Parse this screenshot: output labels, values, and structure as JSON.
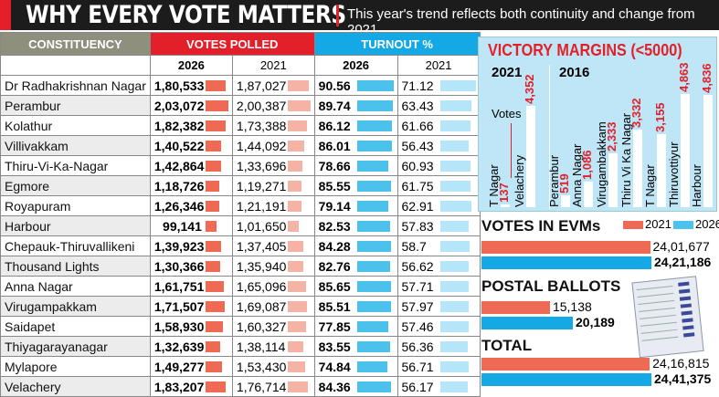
{
  "header": {
    "title": "WHY EVERY VOTE MATTERS",
    "subtitle": "This year's trend reflects both continuity and change from 2021"
  },
  "colors": {
    "red": "#e3202a",
    "bar2026": "#ef6a55",
    "bar2021": "#f5b3a6",
    "blue2026": "#4cc1ec",
    "blue2021": "#b5e5f8",
    "header_gray": "#8f8f7d",
    "turnout_blue": "#14a9e4"
  },
  "table": {
    "headers": {
      "constituency": "CONSTITUENCY",
      "votes": "VOTES POLLED",
      "turnout": "TURNOUT %"
    },
    "years": [
      "2026",
      "2021",
      "2026",
      "2021"
    ],
    "rows": [
      [
        "Dr Radhakrishnan Nagar",
        "1,80,533",
        "1,87,027",
        "90.56",
        "71.12"
      ],
      [
        "Perambur",
        "2,03,072",
        "2,00,387",
        "89.74",
        "63.43"
      ],
      [
        "Kolathur",
        "1,82,382",
        "1,73,388",
        "86.12",
        "61.66"
      ],
      [
        "Villivakkam",
        "1,40,522",
        "1,44,092",
        "86.01",
        "56.43"
      ],
      [
        "Thiru-Vi-Ka-Nagar",
        "1,42,864",
        "1,33,696",
        "78.66",
        "60.93"
      ],
      [
        "Egmore",
        "1,18,726",
        "1,19,271",
        "85.55",
        "61.75"
      ],
      [
        "Royapuram",
        "1,26,346",
        "1,21,191",
        "79.14",
        "62.91"
      ],
      [
        "Harbour",
        "99,141",
        "1,01,650",
        "82.53",
        "57.83"
      ],
      [
        "Chepauk-Thiruvallikeni",
        "1,39,923",
        "1,37,405",
        "84.28",
        "58.7"
      ],
      [
        "Thousand Lights",
        "1,30,366",
        "1,35,940",
        "82.76",
        "56.62"
      ],
      [
        "Anna Nagar",
        "1,61,751",
        "1,65,096",
        "85.65",
        "57.71"
      ],
      [
        "Virugampakkam",
        "1,71,507",
        "1,69,087",
        "85.51",
        "57.97"
      ],
      [
        "Saidapet",
        "1,58,930",
        "1,60,327",
        "77.85",
        "57.46"
      ],
      [
        "Thiyagarayanagar",
        "1,32,639",
        "1,38,114",
        "83.55",
        "56.36"
      ],
      [
        "Mylapore",
        "1,49,277",
        "1,53,430",
        "74.84",
        "56.71"
      ],
      [
        "Velachery",
        "1,83,207",
        "1,76,714",
        "84.36",
        "56.17"
      ]
    ]
  },
  "chart_data": [
    {
      "type": "bar",
      "title": "VICTORY MARGINS (<5000)",
      "ylabel": "Votes",
      "groups": [
        "2021",
        "2016"
      ],
      "bars": [
        {
          "group": "2021",
          "name": "T Nagar",
          "value": 137,
          "label": "137"
        },
        {
          "group": "2021",
          "name": "Velachery",
          "value": 4352,
          "label": "4,352"
        },
        {
          "group": "2016",
          "name": "Perambur",
          "value": 519,
          "label": "519"
        },
        {
          "group": "2016",
          "name": "Anna Nagar",
          "value": 1086,
          "label": "1,086"
        },
        {
          "group": "2016",
          "name": "Virugambakkam",
          "value": 2333,
          "label": "2,333"
        },
        {
          "group": "2016",
          "name": "Thiru Vi Ka Nagar",
          "value": 3332,
          "label": "3,332"
        },
        {
          "group": "2016",
          "name": "T Nagar",
          "value": 3155,
          "label": "3,155"
        },
        {
          "group": "2016",
          "name": "Thiruvottiyur",
          "value": 4863,
          "label": "4,863"
        },
        {
          "group": "2016",
          "name": "Harbour",
          "value": 4836,
          "label": "4,836"
        }
      ]
    },
    {
      "type": "bar",
      "orientation": "horizontal",
      "legend": [
        "2021",
        "2026"
      ],
      "legend_position": "top-right",
      "groups": [
        {
          "title": "VOTES IN EVMs",
          "values": [
            2401677,
            2421186
          ],
          "labels": [
            "24,01,677",
            "24,21,186"
          ]
        },
        {
          "title": "POSTAL BALLOTS",
          "values": [
            15138,
            20189
          ],
          "labels": [
            "15,138",
            "20,189"
          ]
        },
        {
          "title": "TOTAL",
          "values": [
            2416815,
            2441375
          ],
          "labels": [
            "24,16,815",
            "24,41,375"
          ]
        }
      ]
    }
  ]
}
